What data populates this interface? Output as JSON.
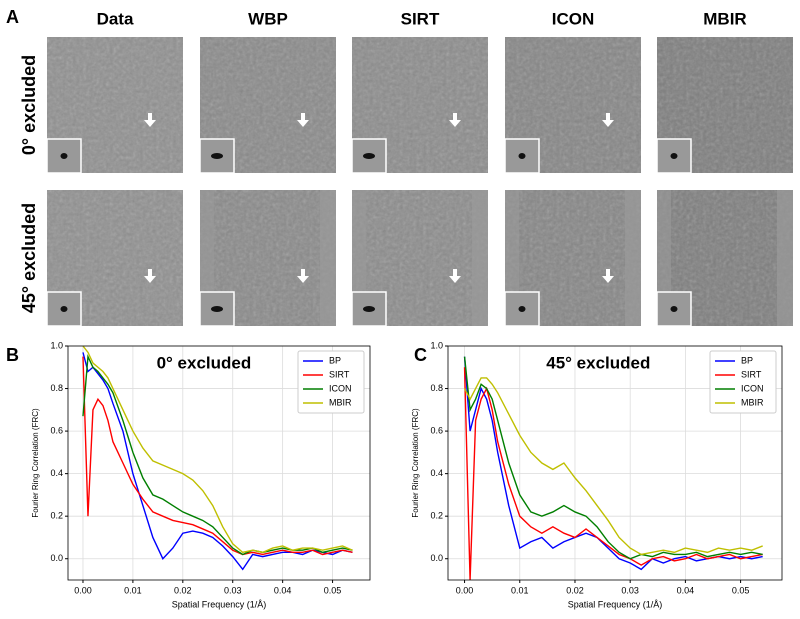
{
  "panel_a": {
    "label": "A",
    "columns": [
      "Data",
      "WBP",
      "SIRT",
      "ICON",
      "MBIR"
    ],
    "rows": [
      "0° excluded",
      "45° excluded"
    ]
  },
  "chart_data": [
    {
      "type": "line",
      "panel_label": "B",
      "title": "0° excluded",
      "x_label": "Spatial Frequency (1/Å)",
      "y_label": "Fourier Ring Correlation (FRC)",
      "x": [
        0,
        0.001,
        0.002,
        0.003,
        0.004,
        0.005,
        0.006,
        0.008,
        0.01,
        0.012,
        0.014,
        0.016,
        0.018,
        0.02,
        0.022,
        0.024,
        0.026,
        0.028,
        0.03,
        0.032,
        0.034,
        0.036,
        0.038,
        0.04,
        0.042,
        0.044,
        0.046,
        0.048,
        0.05,
        0.052,
        0.054
      ],
      "series": [
        {
          "name": "BP",
          "color": "#0000ff",
          "values": [
            0.97,
            0.88,
            0.9,
            0.87,
            0.84,
            0.8,
            0.73,
            0.6,
            0.4,
            0.25,
            0.1,
            0.0,
            0.05,
            0.12,
            0.13,
            0.12,
            0.1,
            0.06,
            0.01,
            -0.05,
            0.02,
            0.01,
            0.02,
            0.03,
            0.03,
            0.02,
            0.04,
            0.03,
            0.02,
            0.04,
            0.03
          ]
        },
        {
          "name": "SIRT",
          "color": "#ff0000",
          "values": [
            0.95,
            0.2,
            0.7,
            0.75,
            0.72,
            0.65,
            0.55,
            0.45,
            0.35,
            0.28,
            0.22,
            0.2,
            0.18,
            0.17,
            0.16,
            0.14,
            0.12,
            0.08,
            0.04,
            0.02,
            0.03,
            0.02,
            0.03,
            0.04,
            0.03,
            0.03,
            0.04,
            0.02,
            0.03,
            0.04,
            0.03
          ]
        },
        {
          "name": "ICON",
          "color": "#007f00",
          "values": [
            0.67,
            0.95,
            0.9,
            0.88,
            0.85,
            0.82,
            0.78,
            0.65,
            0.5,
            0.38,
            0.3,
            0.28,
            0.25,
            0.22,
            0.2,
            0.18,
            0.15,
            0.1,
            0.05,
            0.02,
            0.04,
            0.03,
            0.04,
            0.05,
            0.04,
            0.04,
            0.05,
            0.03,
            0.04,
            0.05,
            0.04
          ]
        },
        {
          "name": "MBIR",
          "color": "#bfbf00",
          "values": [
            1.0,
            0.97,
            0.92,
            0.9,
            0.88,
            0.85,
            0.8,
            0.7,
            0.6,
            0.52,
            0.46,
            0.44,
            0.42,
            0.4,
            0.37,
            0.32,
            0.25,
            0.15,
            0.07,
            0.03,
            0.04,
            0.03,
            0.05,
            0.06,
            0.04,
            0.05,
            0.05,
            0.04,
            0.05,
            0.06,
            0.04
          ]
        }
      ],
      "xlim": [
        -0.003,
        0.0575
      ],
      "ylim": [
        -0.1,
        1.0
      ],
      "xticks": [
        {
          "value": 0,
          "label": "0.00"
        },
        0.01,
        0.02,
        0.03,
        0.04,
        0.05
      ],
      "yticks": [
        {
          "value": 0,
          "label": "0.0"
        },
        0.2,
        0.4,
        0.6,
        0.8,
        {
          "value": 1,
          "label": "1.0"
        }
      ],
      "grid": true,
      "legend": "upper right"
    },
    {
      "type": "line",
      "panel_label": "C",
      "title": "45° excluded",
      "x_label": "Spatial Frequency (1/Å)",
      "y_label": "Fourier Ring Correlation (FRC)",
      "x": [
        0,
        0.001,
        0.002,
        0.003,
        0.004,
        0.005,
        0.006,
        0.008,
        0.01,
        0.012,
        0.014,
        0.016,
        0.018,
        0.02,
        0.022,
        0.024,
        0.026,
        0.028,
        0.03,
        0.032,
        0.034,
        0.036,
        0.038,
        0.04,
        0.042,
        0.044,
        0.046,
        0.048,
        0.05,
        0.052,
        0.054
      ],
      "series": [
        {
          "name": "BP",
          "color": "#0000ff",
          "values": [
            0.95,
            0.6,
            0.7,
            0.8,
            0.75,
            0.65,
            0.5,
            0.25,
            0.05,
            0.08,
            0.1,
            0.05,
            0.08,
            0.1,
            0.12,
            0.1,
            0.05,
            0.0,
            -0.02,
            -0.05,
            0.0,
            -0.02,
            0.0,
            0.01,
            -0.01,
            0.0,
            0.01,
            0.0,
            0.01,
            0.0,
            0.01
          ]
        },
        {
          "name": "SIRT",
          "color": "#ff0000",
          "values": [
            0.9,
            -0.1,
            0.65,
            0.75,
            0.8,
            0.7,
            0.55,
            0.35,
            0.2,
            0.15,
            0.12,
            0.15,
            0.12,
            0.1,
            0.14,
            0.1,
            0.06,
            0.02,
            0.0,
            -0.03,
            0.0,
            0.01,
            -0.01,
            0.0,
            0.02,
            0.0,
            0.01,
            0.02,
            0.0,
            0.01,
            0.02
          ]
        },
        {
          "name": "ICON",
          "color": "#007f00",
          "values": [
            0.95,
            0.7,
            0.75,
            0.82,
            0.8,
            0.75,
            0.65,
            0.45,
            0.3,
            0.22,
            0.2,
            0.22,
            0.25,
            0.22,
            0.2,
            0.15,
            0.08,
            0.03,
            0.0,
            0.02,
            0.01,
            0.03,
            0.02,
            0.02,
            0.03,
            0.01,
            0.02,
            0.03,
            0.02,
            0.03,
            0.02
          ]
        },
        {
          "name": "MBIR",
          "color": "#bfbf00",
          "values": [
            0.8,
            0.75,
            0.8,
            0.85,
            0.85,
            0.82,
            0.78,
            0.68,
            0.58,
            0.5,
            0.45,
            0.42,
            0.45,
            0.38,
            0.32,
            0.25,
            0.18,
            0.1,
            0.05,
            0.02,
            0.03,
            0.04,
            0.03,
            0.05,
            0.04,
            0.03,
            0.05,
            0.04,
            0.05,
            0.04,
            0.06
          ]
        }
      ],
      "xlim": [
        -0.003,
        0.0575
      ],
      "ylim": [
        -0.1,
        1.0
      ],
      "xticks": [
        {
          "value": 0,
          "label": "0.00"
        },
        0.01,
        0.02,
        0.03,
        0.04,
        0.05
      ],
      "yticks": [
        {
          "value": 0,
          "label": "0.0"
        },
        0.2,
        0.4,
        0.6,
        0.8,
        {
          "value": 1,
          "label": "1.0"
        }
      ],
      "grid": true,
      "legend": "upper right"
    }
  ]
}
